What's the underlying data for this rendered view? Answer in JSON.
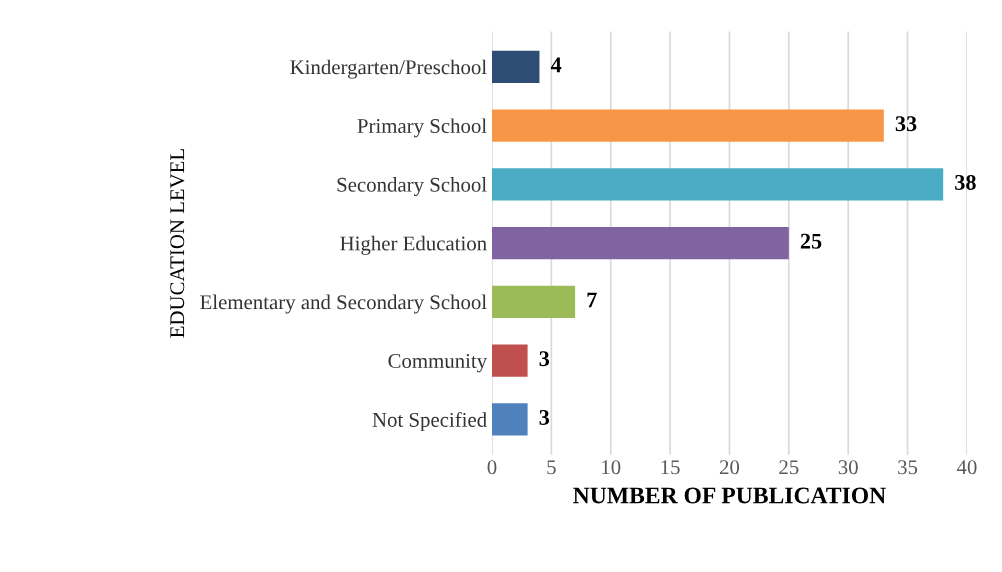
{
  "chart_data": {
    "type": "bar",
    "orientation": "horizontal",
    "xlabel": "NUMBER OF PUBLICATION",
    "ylabel": "EDUCATION LEVEL",
    "categories": [
      "Kindergarten/Preschool",
      "Primary School",
      "Secondary School",
      "Higher Education",
      "Elementary and Secondary School",
      "Community",
      "Not Specified"
    ],
    "values": [
      4,
      33,
      38,
      25,
      7,
      3,
      3
    ],
    "colors": [
      "#2e4d75",
      "#f79646",
      "#4bacc6",
      "#8064a2",
      "#9bbb59",
      "#c0504d",
      "#4f81bd"
    ],
    "xlim": [
      0,
      40
    ],
    "xticks": [
      0,
      5,
      10,
      15,
      20,
      25,
      30,
      35,
      40
    ],
    "grid": "x",
    "data_labels": true
  }
}
